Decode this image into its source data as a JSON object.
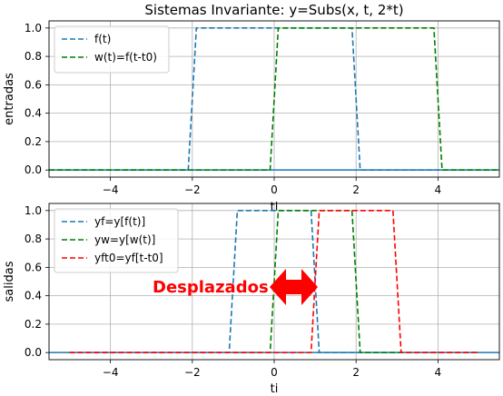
{
  "figure_title": "Sistemas Invariante: y=Subs(x, t, 2*t)",
  "colors": {
    "blue": "#1f77b4",
    "green": "#008000",
    "red": "#ff0000",
    "grid": "#b0b0b0"
  },
  "chart_data": [
    {
      "type": "line",
      "title": "Sistemas Invariante: y=Subs(x, t, 2*t)",
      "xlabel": "ti",
      "ylabel": "entradas",
      "xlim": [
        -5.5,
        5.5
      ],
      "ylim": [
        -0.05,
        1.05
      ],
      "xticks": [
        -4,
        -2,
        0,
        2,
        4
      ],
      "xtick_labels": [
        "−4",
        "−2",
        "0",
        "2",
        "4"
      ],
      "yticks": [
        0.0,
        0.2,
        0.4,
        0.6,
        0.8,
        1.0
      ],
      "ytick_labels": [
        "0.0",
        "0.2",
        "0.4",
        "0.6",
        "0.8",
        "1.0"
      ],
      "grid": true,
      "legend_position": "upper-left",
      "baseline": {
        "y": 0,
        "color": "#1f77b4"
      },
      "series": [
        {
          "name": "f(t)",
          "color": "#1f77b4",
          "style": "dashed",
          "x": [
            -5.5,
            -2.1,
            -1.9,
            1.9,
            2.1,
            5.5
          ],
          "y": [
            0,
            0,
            1,
            1,
            0,
            0
          ]
        },
        {
          "name": "w(t)=f(t-t0)",
          "color": "#008000",
          "style": "dashed",
          "x": [
            -5.5,
            -0.1,
            0.1,
            3.9,
            4.1,
            5.5
          ],
          "y": [
            0,
            0,
            1,
            1,
            0,
            0
          ]
        }
      ]
    },
    {
      "type": "line",
      "title": "",
      "xlabel": "ti",
      "ylabel": "salidas",
      "xlim": [
        -5.5,
        5.5
      ],
      "ylim": [
        -0.05,
        1.05
      ],
      "xticks": [
        -4,
        -2,
        0,
        2,
        4
      ],
      "xtick_labels": [
        "−4",
        "−2",
        "0",
        "2",
        "4"
      ],
      "yticks": [
        0.0,
        0.2,
        0.4,
        0.6,
        0.8,
        1.0
      ],
      "ytick_labels": [
        "0.0",
        "0.2",
        "0.4",
        "0.6",
        "0.8",
        "1.0"
      ],
      "grid": true,
      "legend_position": "upper-left",
      "baseline": {
        "y": 0,
        "color": "#1f77b4"
      },
      "series": [
        {
          "name": "yf=y[f(t)]",
          "color": "#1f77b4",
          "style": "dashed",
          "x": [
            -5.0,
            -1.1,
            -0.9,
            0.9,
            1.1,
            5.0
          ],
          "y": [
            0,
            0,
            1,
            1,
            0,
            0
          ]
        },
        {
          "name": "yw=y[w(t)]",
          "color": "#008000",
          "style": "dashed",
          "x": [
            -5.0,
            -0.1,
            0.1,
            1.9,
            2.1,
            5.0
          ],
          "y": [
            0,
            0,
            1,
            1,
            0,
            0
          ]
        },
        {
          "name": "yft0=yf[t-t0]",
          "color": "#ff0000",
          "style": "dashed",
          "x": [
            -5.0,
            0.9,
            1.1,
            2.9,
            3.1,
            5.0
          ],
          "y": [
            0,
            0,
            1,
            1,
            0,
            0
          ]
        }
      ],
      "annotation": {
        "text": "Desplazados",
        "color": "#ff0000"
      }
    }
  ]
}
